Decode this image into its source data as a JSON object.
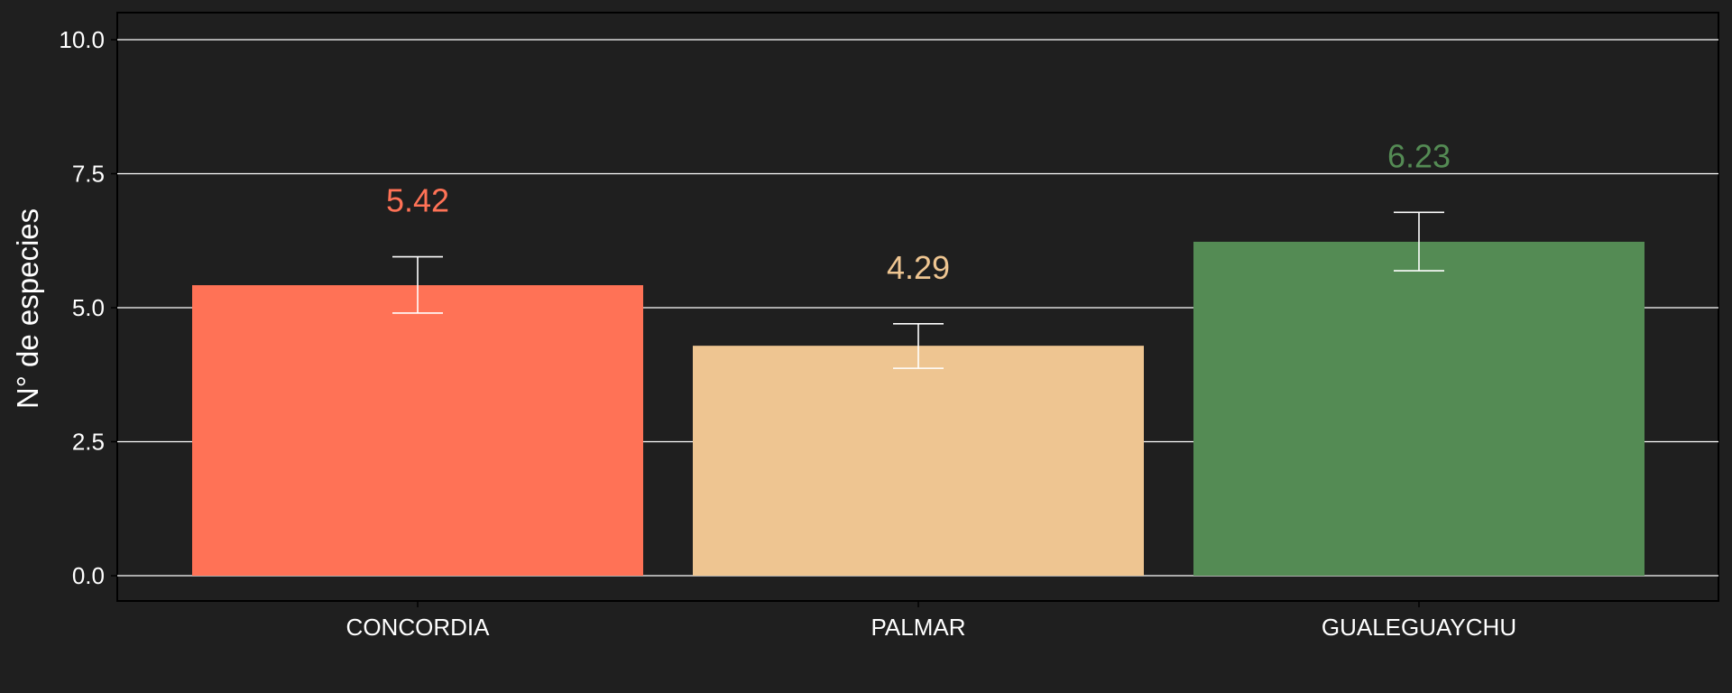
{
  "chart_data": {
    "type": "bar",
    "title": "",
    "xlabel": "",
    "ylabel": "N° de especies",
    "ylim": [
      0,
      10.5
    ],
    "yticks": [
      0.0,
      2.5,
      5.0,
      7.5,
      10.0
    ],
    "ytick_labels": [
      "0.0",
      "2.5",
      "5.0",
      "7.5",
      "10.0"
    ],
    "grid": "horizontal major",
    "legend": "none",
    "categories": [
      "CONCORDIA",
      "PALMAR",
      "GUALEGUAYCHU"
    ],
    "values": [
      5.42,
      4.29,
      6.23
    ],
    "value_labels": [
      "5.42",
      "4.29",
      "6.23"
    ],
    "error_low": [
      4.9,
      3.87,
      5.69
    ],
    "error_high": [
      5.95,
      4.7,
      6.78
    ],
    "colors": [
      "#ff7256",
      "#eec591",
      "#548b54"
    ],
    "background_color": "#1f1f1f",
    "grid_color": "#ffffff",
    "errorbar_color": "#ffffff"
  }
}
